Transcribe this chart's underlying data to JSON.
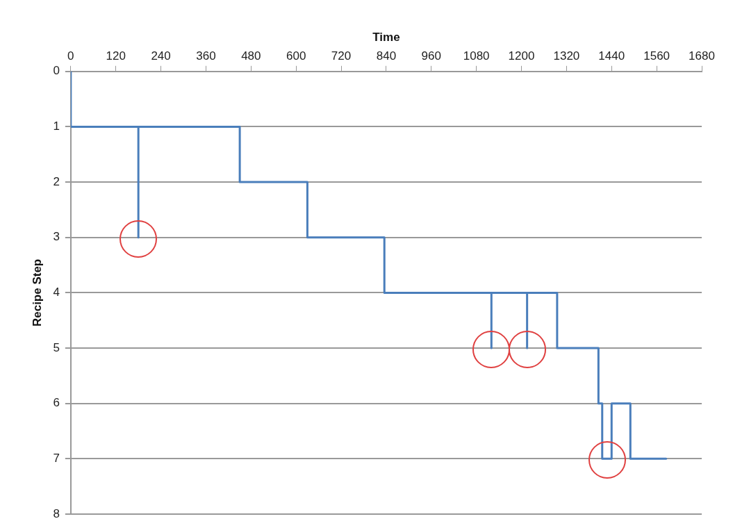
{
  "chart_data": {
    "type": "step",
    "xlabel": "Time",
    "ylabel": "Recipe Step",
    "xlim": [
      0,
      1680
    ],
    "xticks": [
      0,
      120,
      240,
      360,
      480,
      600,
      720,
      840,
      960,
      1080,
      1200,
      1320,
      1440,
      1560,
      1680
    ],
    "ylim": [
      8,
      0
    ],
    "yticks": [
      0,
      1,
      2,
      3,
      4,
      5,
      6,
      7,
      8
    ],
    "grid": "y",
    "legend": false,
    "marker": "none",
    "line_style": "solid",
    "series": [
      {
        "color": "#4a7ebb",
        "x": [
          0,
          0,
          180,
          180,
          450,
          630,
          835,
          1120,
          1120,
          1215,
          1215,
          1295,
          1405,
          1415,
          1440,
          1490,
          1585
        ],
        "values": [
          0,
          1,
          3,
          1,
          2,
          3,
          4,
          5,
          4,
          5,
          4,
          5,
          6,
          7,
          6,
          7,
          7
        ]
      }
    ]
  }
}
